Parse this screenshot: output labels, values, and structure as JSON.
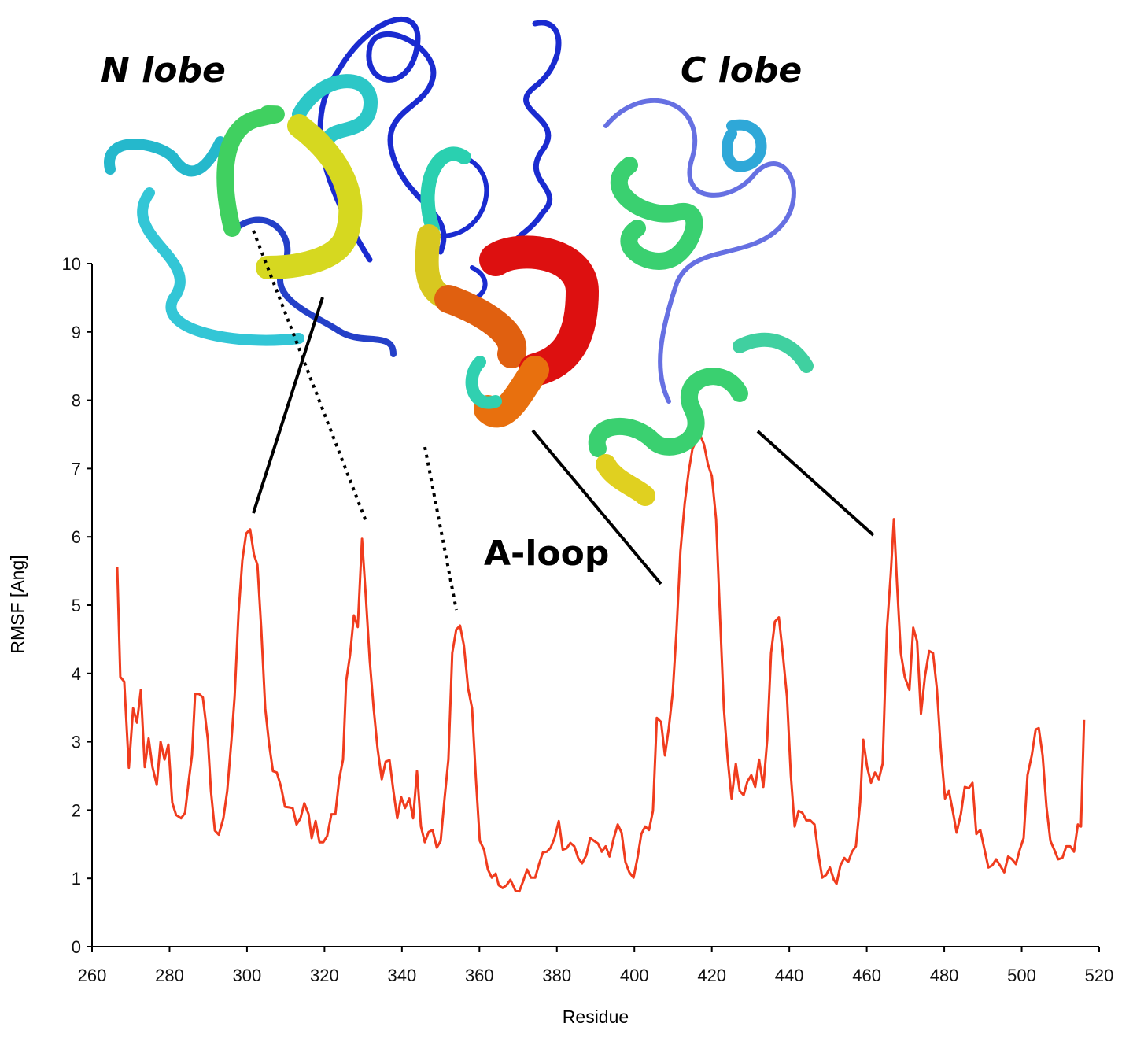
{
  "chart_data": {
    "type": "line",
    "annotations": [
      "N lobe",
      "C lobe",
      "A-loop"
    ],
    "x_label": "Residue",
    "y_label": "RMSF [Ang]",
    "color": "#f03c1e",
    "xlim": [
      260,
      520
    ],
    "ylim": [
      0,
      10
    ],
    "xticks": [
      260,
      280,
      300,
      320,
      340,
      360,
      380,
      400,
      420,
      440,
      460,
      480,
      500,
      520
    ],
    "yticks": [
      0,
      1,
      2,
      3,
      4,
      5,
      6,
      7,
      8,
      9,
      10
    ],
    "x": [
      266.5,
      267.3,
      268.3,
      269.5,
      270.6,
      271.6,
      272.6,
      273.6,
      274.6,
      275.6,
      276.7,
      277.7,
      278.7,
      279.7,
      280.7,
      281.7,
      283,
      284,
      285,
      285.8,
      286.6,
      287.6,
      288.6,
      289.9,
      290.7,
      291.7,
      292.7,
      293.9,
      294.9,
      296,
      296.8,
      297.8,
      298.8,
      299.8,
      300.8,
      301.8,
      302.7,
      303.7,
      304.7,
      305.7,
      306.7,
      307.7,
      308.8,
      309.8,
      310.8,
      311.8,
      312.8,
      313.8,
      314.8,
      315.9,
      316.7,
      317.7,
      318.7,
      319.7,
      320.7,
      321.8,
      322.8,
      323.8,
      324.8,
      325.6,
      326.6,
      327.6,
      328.6,
      329.7,
      330.7,
      331.7,
      332.7,
      333.7,
      334.8,
      335.8,
      336.8,
      337.8,
      338.8,
      339.8,
      340.8,
      341.9,
      342.9,
      343.9,
      344.9,
      345.9,
      346.9,
      347.9,
      349,
      350,
      351,
      352,
      353,
      354,
      355,
      356,
      357.1,
      358.1,
      359.1,
      360.1,
      361.2,
      362.2,
      363.2,
      364.2,
      365,
      366,
      367,
      368,
      369.3,
      370.3,
      371.3,
      372.3,
      373.3,
      374.4,
      375.4,
      376.4,
      377.4,
      378.4,
      379.4,
      380.5,
      381.5,
      382.5,
      383.5,
      384.5,
      385.5,
      386.5,
      387.6,
      388.6,
      389.6,
      390.6,
      391.6,
      392.6,
      393.6,
      394.7,
      395.7,
      396.7,
      397.7,
      398.7,
      399.8,
      400.8,
      401.8,
      402.8,
      403.8,
      404.8,
      405.8,
      406.9,
      407.9,
      408.9,
      409.9,
      410.9,
      411.9,
      413,
      414,
      415,
      416,
      417,
      418,
      419,
      420,
      421.1,
      422.1,
      423.1,
      424.1,
      425.1,
      426.2,
      427.2,
      428.2,
      429.2,
      430.2,
      431.2,
      432.2,
      433.3,
      434.3,
      435.3,
      436.3,
      437.3,
      438.3,
      439.4,
      440.4,
      441.4,
      442.4,
      443.4,
      444.4,
      445.4,
      446.5,
      447.5,
      448.5,
      449.5,
      450.5,
      451.5,
      452.2,
      453.2,
      454.2,
      455.2,
      456.2,
      457.2,
      458.3,
      459.1,
      460.1,
      461.1,
      462.1,
      463.1,
      464.1,
      465.2,
      466.2,
      467,
      467.8,
      468.8,
      469.8,
      471,
      472,
      473,
      474,
      475,
      476.1,
      477.1,
      478.1,
      479.1,
      480.2,
      481.2,
      482.2,
      483.2,
      484.3,
      485.3,
      486.3,
      487.3,
      488.3,
      489.3,
      490.4,
      491.4,
      492.4,
      493.4,
      494.4,
      495.5,
      496.5,
      497.5,
      498.5,
      499.5,
      500.5,
      501.5,
      502.6,
      503.6,
      504.4,
      505.4,
      506.4,
      507.4,
      508.4,
      509.4,
      510.5,
      511.5,
      512.5,
      513.5,
      514.5,
      515.3,
      516.1
    ],
    "values": [
      5.56,
      3.95,
      3.88,
      2.62,
      3.49,
      3.28,
      3.76,
      2.63,
      3.05,
      2.63,
      2.37,
      3.0,
      2.74,
      2.96,
      2.11,
      1.93,
      1.88,
      1.96,
      2.45,
      2.8,
      3.7,
      3.7,
      3.65,
      3.03,
      2.28,
      1.7,
      1.64,
      1.88,
      2.28,
      3.03,
      3.66,
      4.87,
      5.66,
      6.05,
      6.11,
      5.74,
      5.59,
      4.64,
      3.49,
      2.97,
      2.57,
      2.55,
      2.34,
      2.05,
      2.04,
      2.03,
      1.79,
      1.88,
      2.1,
      1.94,
      1.59,
      1.84,
      1.53,
      1.53,
      1.62,
      1.94,
      1.94,
      2.45,
      2.74,
      3.89,
      4.27,
      4.85,
      4.68,
      5.97,
      5.1,
      4.18,
      3.49,
      2.91,
      2.45,
      2.71,
      2.73,
      2.28,
      1.88,
      2.19,
      2.03,
      2.17,
      1.88,
      2.57,
      1.76,
      1.53,
      1.68,
      1.71,
      1.45,
      1.55,
      2.17,
      2.74,
      4.3,
      4.64,
      4.7,
      4.41,
      3.78,
      3.49,
      2.45,
      1.55,
      1.42,
      1.13,
      1.01,
      1.07,
      0.9,
      0.86,
      0.9,
      0.98,
      0.82,
      0.81,
      0.96,
      1.13,
      1.01,
      1.01,
      1.21,
      1.38,
      1.39,
      1.45,
      1.59,
      1.84,
      1.42,
      1.44,
      1.52,
      1.47,
      1.3,
      1.22,
      1.34,
      1.59,
      1.55,
      1.51,
      1.39,
      1.47,
      1.32,
      1.59,
      1.79,
      1.67,
      1.24,
      1.09,
      1.01,
      1.3,
      1.65,
      1.76,
      1.71,
      1.99,
      3.35,
      3.29,
      2.8,
      3.2,
      3.72,
      4.64,
      5.79,
      6.49,
      6.95,
      7.29,
      7.41,
      7.49,
      7.35,
      7.06,
      6.89,
      6.26,
      4.87,
      3.49,
      2.74,
      2.17,
      2.68,
      2.28,
      2.22,
      2.42,
      2.51,
      2.34,
      2.74,
      2.34,
      3.03,
      4.3,
      4.76,
      4.82,
      4.3,
      3.66,
      2.51,
      1.76,
      1.99,
      1.96,
      1.85,
      1.85,
      1.79,
      1.36,
      1.01,
      1.05,
      1.16,
      0.98,
      0.92,
      1.19,
      1.3,
      1.24,
      1.39,
      1.47,
      2.11,
      3.03,
      2.63,
      2.4,
      2.55,
      2.45,
      2.68,
      4.64,
      5.45,
      6.26,
      5.33,
      4.3,
      3.95,
      3.76,
      4.67,
      4.47,
      3.41,
      3.95,
      4.33,
      4.3,
      3.78,
      2.91,
      2.17,
      2.28,
      1.99,
      1.67,
      1.94,
      2.34,
      2.32,
      2.4,
      1.65,
      1.71,
      1.42,
      1.16,
      1.19,
      1.28,
      1.19,
      1.09,
      1.32,
      1.28,
      1.21,
      1.42,
      1.59,
      2.51,
      2.8,
      3.18,
      3.2,
      2.8,
      2.05,
      1.55,
      1.42,
      1.28,
      1.3,
      1.47,
      1.47,
      1.39,
      1.79,
      1.76,
      3.32
    ]
  }
}
